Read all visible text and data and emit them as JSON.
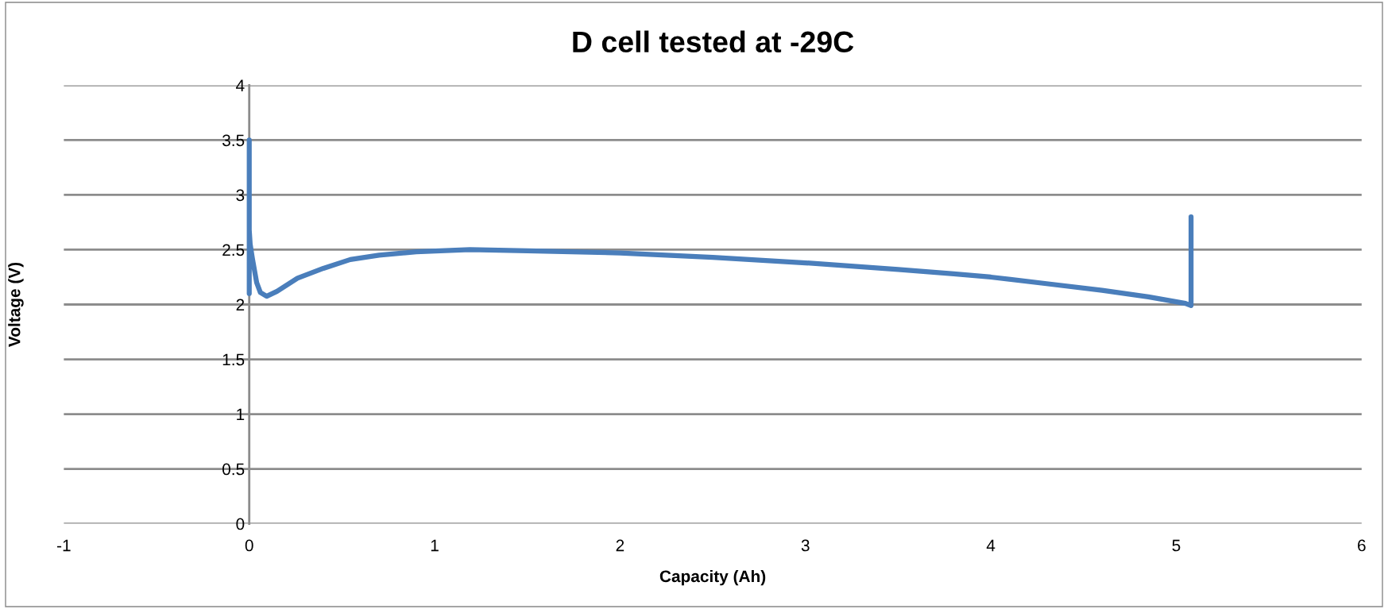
{
  "chart_data": {
    "type": "line",
    "title": "D cell tested at -29C",
    "xlabel": "Capacity (Ah)",
    "ylabel": "Voltage (V)",
    "series": [
      {
        "color": "#4a7ebb",
        "x": [
          0,
          0,
          0,
          0.005,
          0.017,
          0.04,
          0.06,
          0.094,
          0.15,
          0.26,
          0.4,
          0.545,
          0.7,
          0.9,
          1.19,
          1.5,
          2.0,
          2.5,
          3.0,
          3.5,
          3.8,
          4.0,
          4.3,
          4.6,
          4.85,
          5.05,
          5.08,
          5.08
        ],
        "values": [
          3.5,
          2.1,
          2.68,
          2.55,
          2.42,
          2.2,
          2.11,
          2.075,
          2.12,
          2.24,
          2.33,
          2.41,
          2.45,
          2.48,
          2.5,
          2.49,
          2.47,
          2.43,
          2.38,
          2.32,
          2.28,
          2.25,
          2.19,
          2.13,
          2.07,
          2.01,
          1.99,
          2.8
        ]
      }
    ],
    "xlim": [
      -1,
      6
    ],
    "xticks": [
      -1,
      0,
      1,
      2,
      3,
      4,
      5,
      6
    ],
    "ylim": [
      0,
      4
    ],
    "yticks": [
      0,
      0.5,
      1,
      1.5,
      2,
      2.5,
      3,
      3.5,
      4
    ],
    "grid": "y",
    "legend": false,
    "marker": "none",
    "line_style": "solid"
  }
}
